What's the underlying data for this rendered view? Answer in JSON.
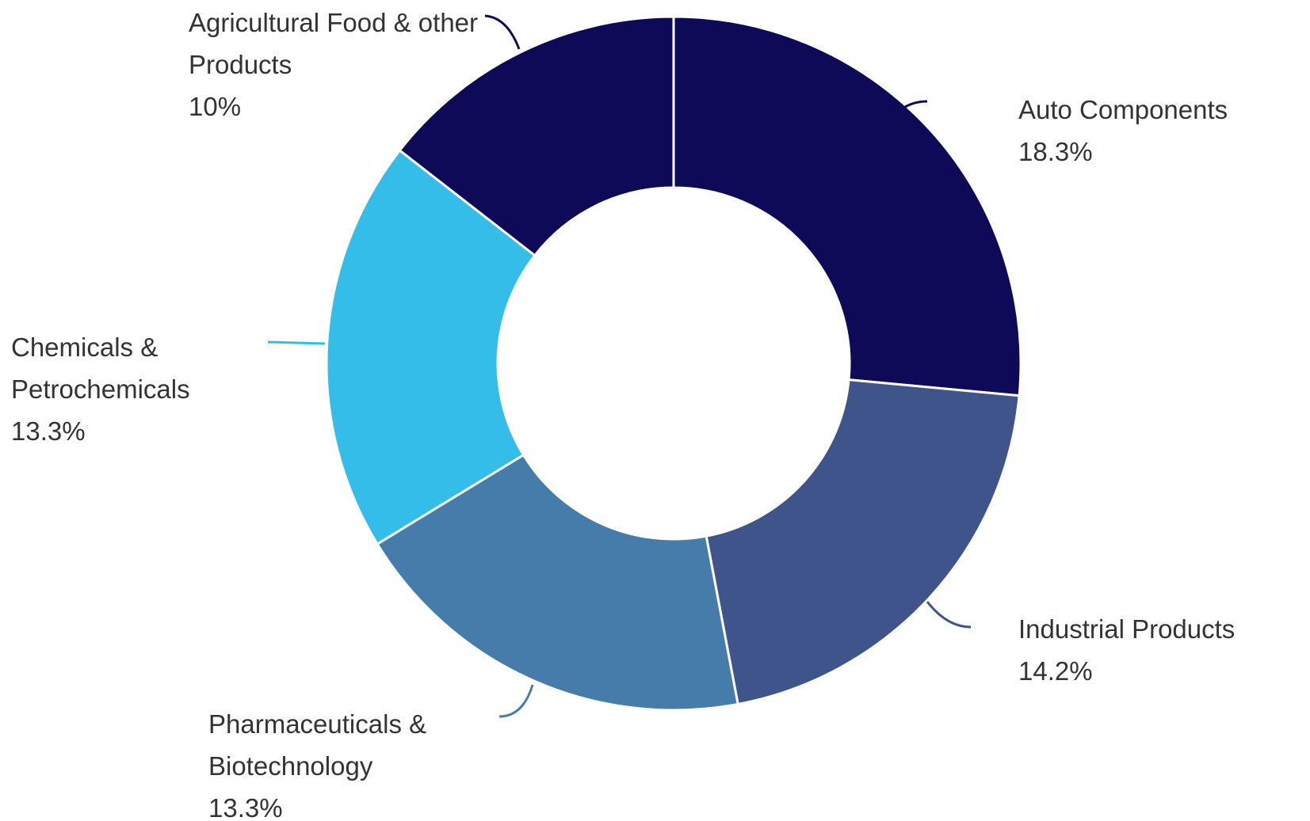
{
  "chart_data": {
    "type": "donut",
    "categories": [
      "Auto Components",
      "Industrial Products",
      "Pharmaceuticals & Biotechnology",
      "Chemicals & Petrochemicals",
      "Agricultural Food & other Products"
    ],
    "values": [
      18.3,
      14.2,
      13.3,
      13.3,
      10
    ],
    "value_labels": [
      "18.3%",
      "14.2%",
      "13.3%",
      "13.3%",
      "10%"
    ],
    "colors": [
      "#0e0a57",
      "#3f548a",
      "#467ca9",
      "#35bde9",
      "#0e0a57"
    ]
  }
}
